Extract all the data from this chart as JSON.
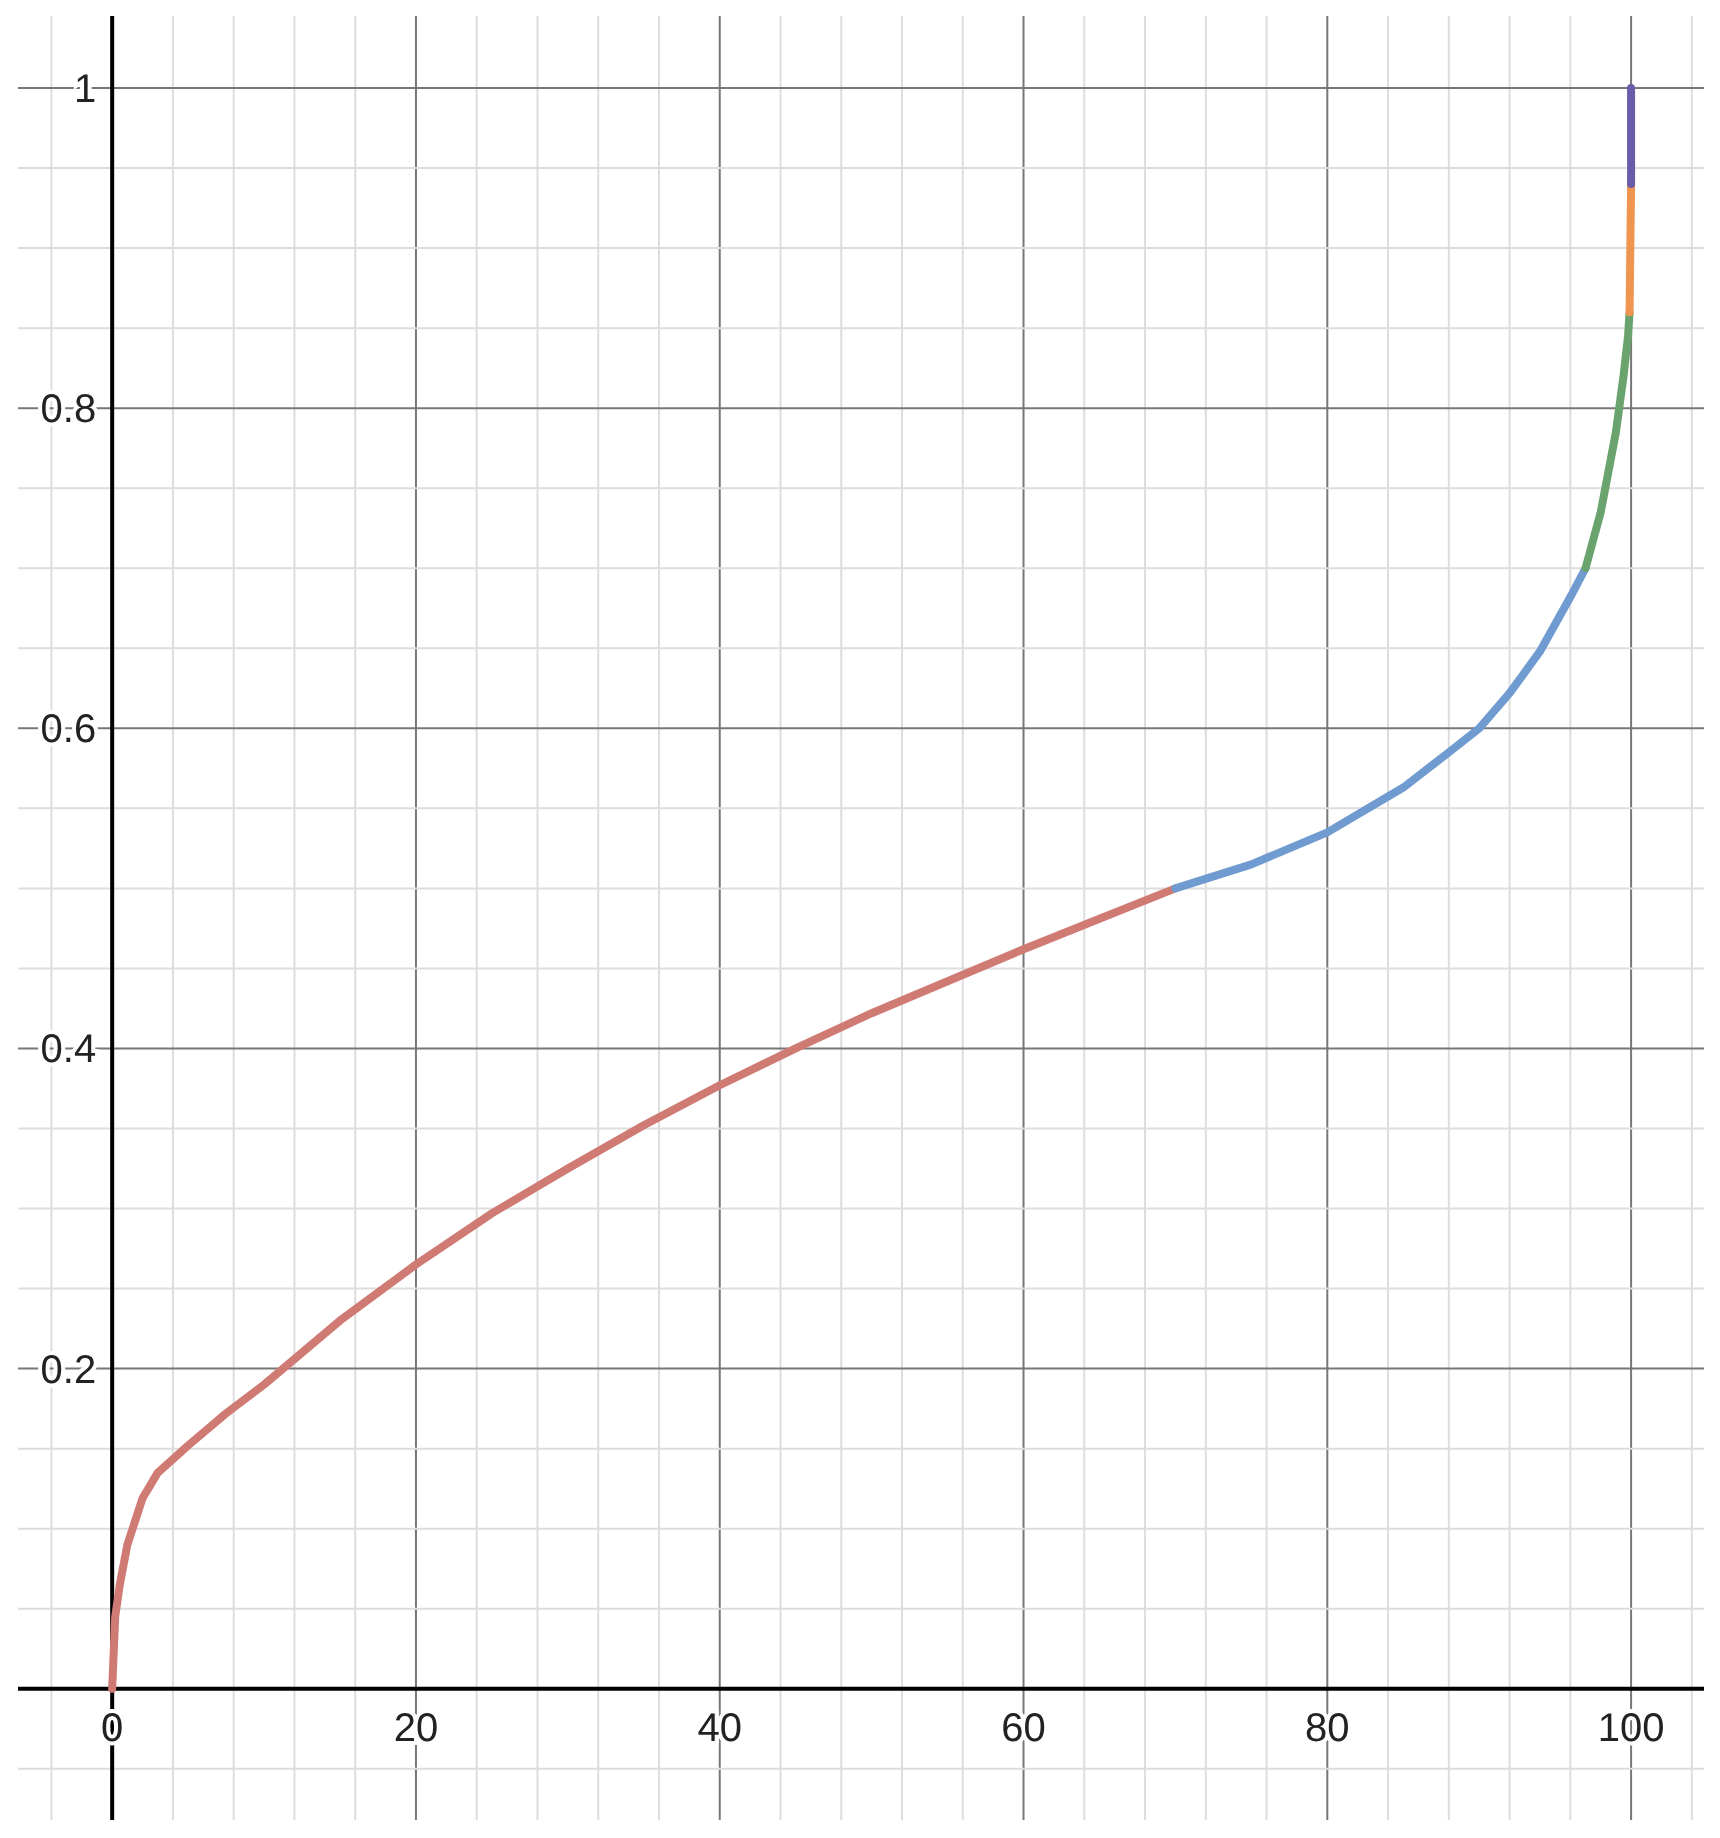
{
  "chart_data": {
    "type": "line",
    "series": [
      {
        "color": "#d07a74",
        "x": [
          0,
          0.2,
          0.5,
          1,
          2,
          3,
          5,
          7.5,
          10,
          15,
          20,
          25,
          30,
          35,
          40,
          45,
          50,
          55,
          60,
          65,
          70
        ],
        "values": [
          0,
          0.045,
          0.065,
          0.09,
          0.119,
          0.135,
          0.152,
          0.172,
          0.19,
          0.23,
          0.265,
          0.297,
          0.325,
          0.352,
          0.377,
          0.4,
          0.422,
          0.442,
          0.462,
          0.481,
          0.5
        ]
      },
      {
        "color": "#6f9bd0",
        "x": [
          70,
          75,
          80,
          85,
          88,
          90,
          92,
          93,
          94,
          95,
          96,
          97
        ],
        "values": [
          0.5,
          0.515,
          0.535,
          0.563,
          0.585,
          0.6,
          0.622,
          0.635,
          0.648,
          0.665,
          0.682,
          0.7
        ]
      },
      {
        "color": "#6aa36d",
        "x": [
          97,
          98,
          98.5,
          99,
          99.5,
          99.8,
          99.9
        ],
        "values": [
          0.7,
          0.735,
          0.76,
          0.785,
          0.82,
          0.845,
          0.86
        ]
      },
      {
        "color": "#f0954f",
        "x": [
          99.9,
          100
        ],
        "values": [
          0.86,
          0.94
        ]
      },
      {
        "color": "#6a5ca8",
        "x": [
          100,
          100
        ],
        "values": [
          0.94,
          1
        ]
      }
    ],
    "xlim": [
      -6.2,
      104.8
    ],
    "ylim": [
      -0.082,
      1.045
    ],
    "xticks": [
      {
        "value": -4,
        "label": null
      },
      0,
      {
        "value": 4,
        "label": null
      },
      {
        "value": 8,
        "label": null
      },
      {
        "value": 12,
        "label": null
      },
      {
        "value": 16,
        "label": null
      },
      20,
      {
        "value": 24,
        "label": null
      },
      {
        "value": 28,
        "label": null
      },
      {
        "value": 32,
        "label": null
      },
      {
        "value": 36,
        "label": null
      },
      40,
      {
        "value": 44,
        "label": null
      },
      {
        "value": 48,
        "label": null
      },
      {
        "value": 52,
        "label": null
      },
      {
        "value": 56,
        "label": null
      },
      60,
      {
        "value": 64,
        "label": null
      },
      {
        "value": 68,
        "label": null
      },
      {
        "value": 72,
        "label": null
      },
      {
        "value": 76,
        "label": null
      },
      80,
      {
        "value": 84,
        "label": null
      },
      {
        "value": 88,
        "label": null
      },
      {
        "value": 92,
        "label": null
      },
      {
        "value": 96,
        "label": null
      },
      100,
      {
        "value": 104,
        "label": null
      }
    ],
    "yticks": [
      {
        "value": -0.05,
        "label": null
      },
      {
        "value": 0.05,
        "label": null
      },
      {
        "value": 0.1,
        "label": null
      },
      {
        "value": 0.15,
        "label": null
      },
      0.2,
      {
        "value": 0.25,
        "label": null
      },
      {
        "value": 0.3,
        "label": null
      },
      {
        "value": 0.35,
        "label": null
      },
      0.4,
      {
        "value": 0.45,
        "label": null
      },
      {
        "value": 0.5,
        "label": null
      },
      {
        "value": 0.55,
        "label": null
      },
      0.6,
      {
        "value": 0.65,
        "label": null
      },
      {
        "value": 0.7,
        "label": null
      },
      {
        "value": 0.75,
        "label": null
      },
      0.8,
      {
        "value": 0.85,
        "label": null
      },
      {
        "value": 0.9,
        "label": null
      },
      {
        "value": 0.95,
        "label": null
      },
      1
    ],
    "grid": true,
    "marker": "none",
    "line_style": "solid"
  }
}
